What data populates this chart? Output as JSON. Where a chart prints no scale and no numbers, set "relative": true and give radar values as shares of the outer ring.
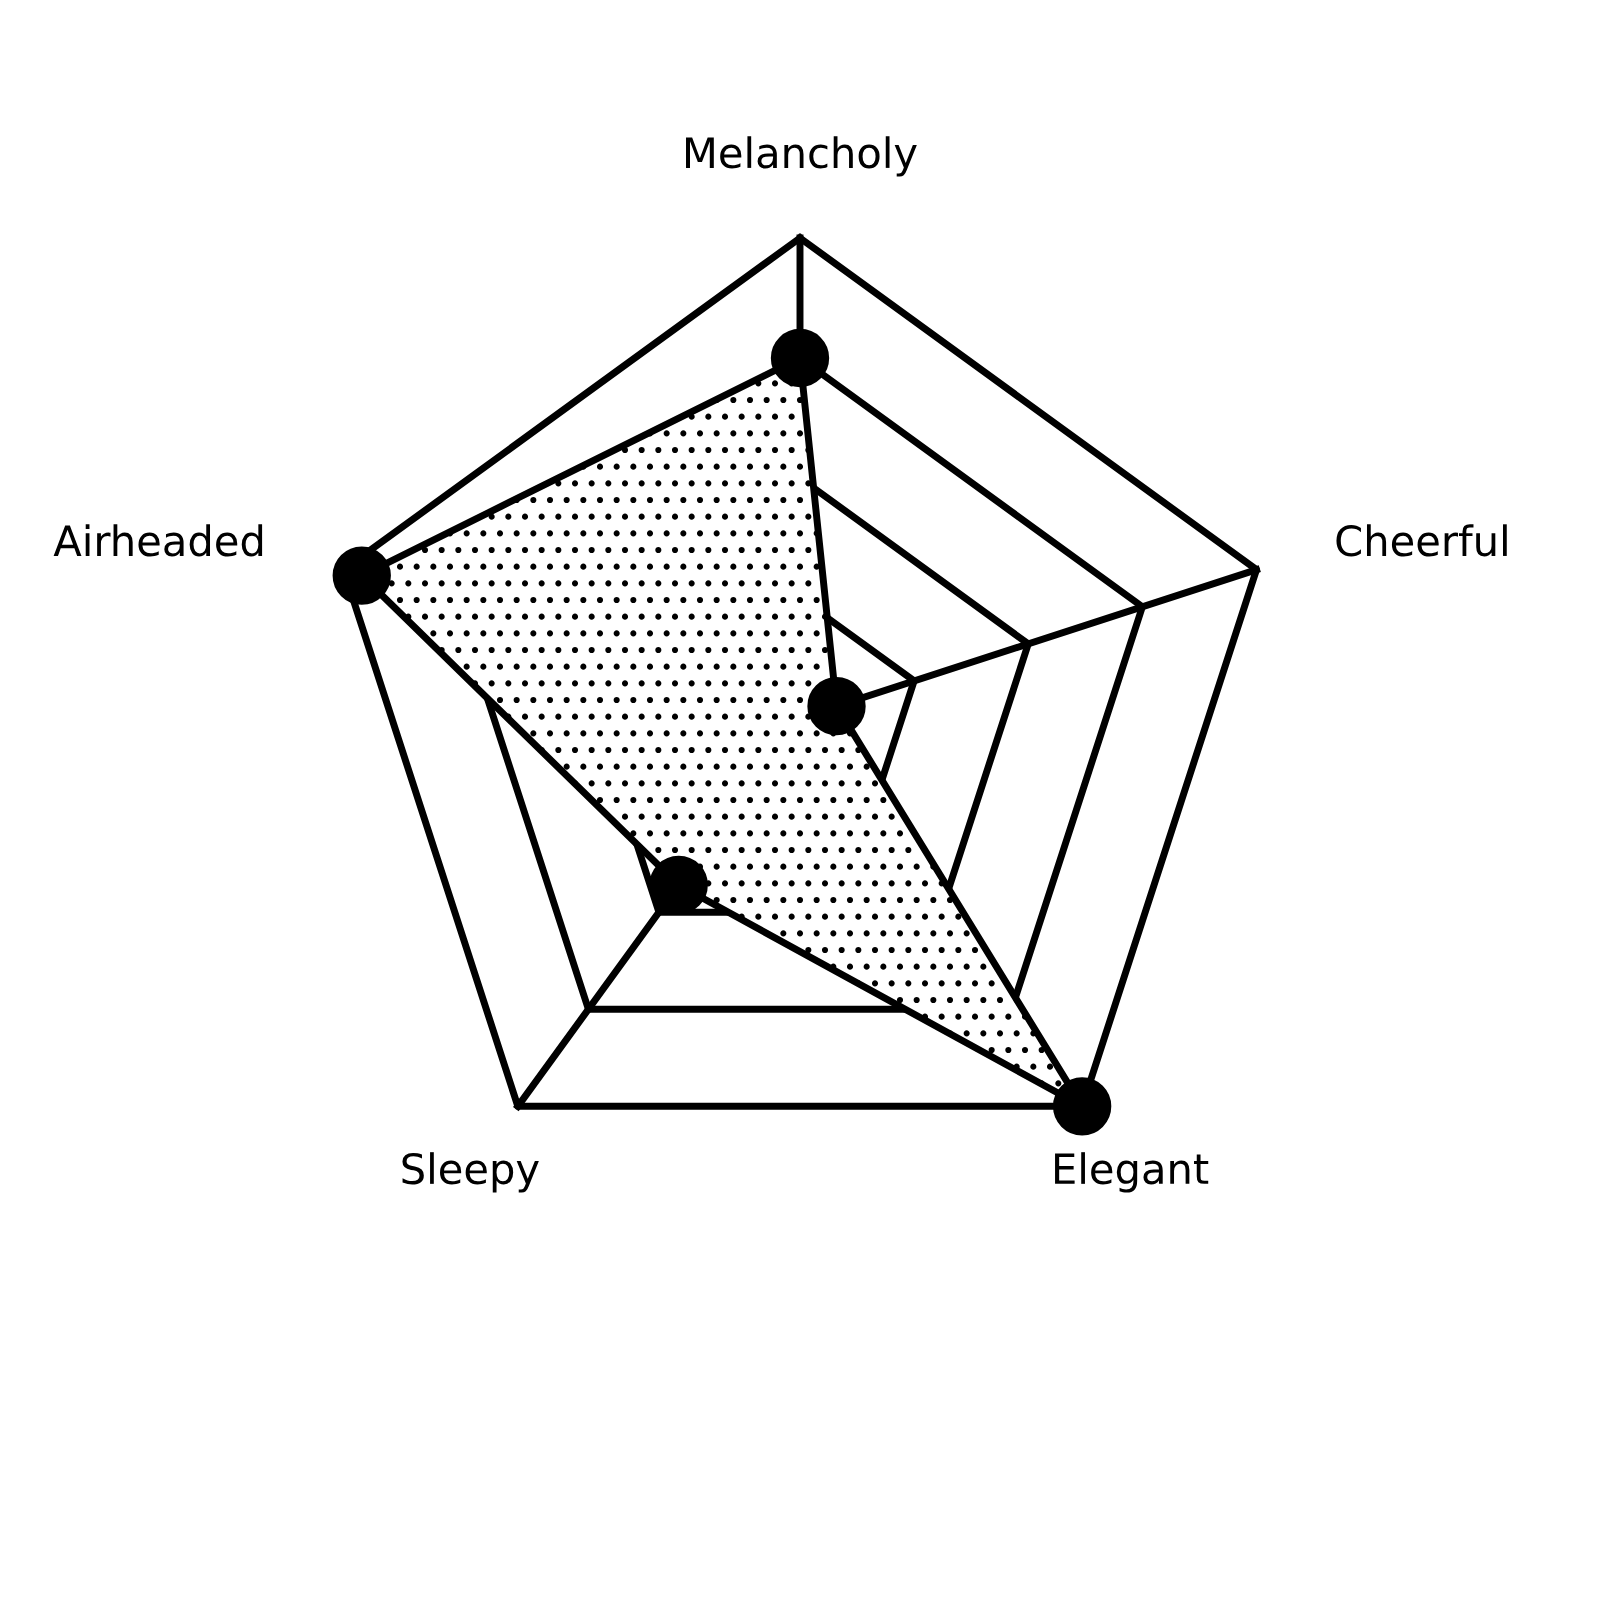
{
  "chart_data": {
    "type": "radar",
    "relative": true,
    "grid": true,
    "marker": "circle",
    "line_style": "solid",
    "categories": [
      "Melancholy",
      "Cheerful",
      "Elegant",
      "Sleepy",
      "Airheaded"
    ],
    "series": [
      {
        "color": "#000000",
        "values": [
          0.75,
          0.08,
          1.0,
          0.43,
          0.96
        ]
      }
    ]
  }
}
